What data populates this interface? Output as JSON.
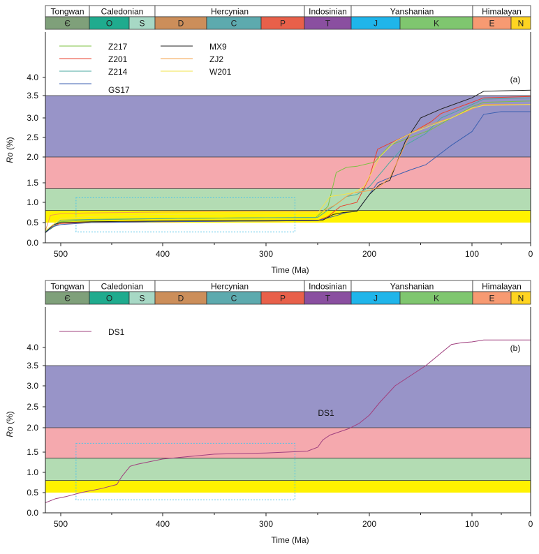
{
  "chart_data": [
    {
      "type": "line",
      "panel_tag": "(a)",
      "xlabel": "Time (Ma)",
      "ylabel_italic": "Ro",
      "ylabel_suffix": " (%)",
      "xlim": [
        530,
        0
      ],
      "ylim": [
        0,
        4.3
      ],
      "x_ticks": [
        500,
        400,
        300,
        200,
        100,
        0
      ],
      "y_ticks": [
        "0.0",
        "0.5",
        "1.0",
        "1.5",
        "2.0",
        "2.5",
        "3.0",
        "3.5",
        "4.0"
      ],
      "legend_placement": "top-left",
      "maturity_zones": [
        {
          "from": 0.5,
          "to": 0.8,
          "color": "#fff200"
        },
        {
          "from": 0.8,
          "to": 1.35,
          "color": "#b3dcb3"
        },
        {
          "from": 1.35,
          "to": 2.0,
          "color": "#f5a9ae"
        },
        {
          "from": 2.0,
          "to": 3.5,
          "color": "#9894c8"
        }
      ],
      "highlight_box": {
        "x_from": 485,
        "x_to": 272,
        "y_from": 0.27,
        "y_to": 1.12,
        "color": "#4fc3e8"
      },
      "series": [
        {
          "name": "Z217",
          "color": "#7cc142",
          "x": [
            530,
            520,
            500,
            480,
            440,
            400,
            300,
            252,
            240,
            232,
            222,
            212,
            195,
            180,
            160,
            140,
            120,
            100,
            80,
            0
          ],
          "y": [
            0.3,
            0.34,
            0.52,
            0.55,
            0.58,
            0.6,
            0.62,
            0.62,
            0.9,
            1.7,
            1.8,
            1.82,
            1.9,
            2.3,
            2.5,
            2.7,
            3.0,
            3.25,
            3.35,
            3.38
          ]
        },
        {
          "name": "Z201",
          "color": "#e8412e",
          "x": [
            530,
            515,
            500,
            470,
            400,
            300,
            250,
            240,
            228,
            212,
            200,
            192,
            180,
            160,
            140,
            130,
            100,
            80,
            0
          ],
          "y": [
            0.25,
            0.42,
            0.48,
            0.5,
            0.52,
            0.54,
            0.55,
            0.65,
            0.9,
            1.0,
            1.6,
            2.2,
            2.35,
            2.6,
            2.9,
            3.1,
            3.35,
            3.45,
            3.48
          ]
        },
        {
          "name": "Z214",
          "color": "#4aa8a0",
          "x": [
            530,
            515,
            500,
            470,
            400,
            300,
            250,
            235,
            222,
            212,
            200,
            180,
            165,
            145,
            130,
            100,
            80,
            0
          ],
          "y": [
            0.27,
            0.4,
            0.56,
            0.58,
            0.6,
            0.62,
            0.63,
            0.9,
            1.15,
            1.2,
            1.4,
            1.9,
            2.3,
            2.6,
            3.0,
            3.3,
            3.42,
            3.45
          ]
        },
        {
          "name": "GS17",
          "color": "#3b5fb0",
          "x": [
            530,
            515,
            500,
            470,
            400,
            300,
            250,
            235,
            222,
            212,
            200,
            192,
            180,
            160,
            145,
            120,
            100,
            80,
            50,
            0
          ],
          "y": [
            0.25,
            0.4,
            0.45,
            0.5,
            0.52,
            0.54,
            0.55,
            0.65,
            0.75,
            0.78,
            1.2,
            1.5,
            1.6,
            1.75,
            1.85,
            2.3,
            2.65,
            3.08,
            3.14,
            3.14
          ]
        },
        {
          "name": "MX9",
          "color": "#222222",
          "x": [
            530,
            515,
            500,
            470,
            400,
            300,
            245,
            235,
            225,
            212,
            200,
            190,
            180,
            165,
            150,
            130,
            100,
            80,
            0
          ],
          "y": [
            0.25,
            0.45,
            0.5,
            0.52,
            0.54,
            0.55,
            0.56,
            0.7,
            0.75,
            0.78,
            1.2,
            1.45,
            1.55,
            2.4,
            3.0,
            3.2,
            3.45,
            3.62,
            3.65
          ]
        },
        {
          "name": "ZJ2",
          "color": "#f5a04a",
          "x": [
            530,
            520,
            510,
            500,
            470,
            400,
            300,
            245,
            232,
            222,
            215,
            200,
            190,
            180,
            160,
            145,
            120,
            100,
            80,
            0
          ],
          "y": [
            0.3,
            0.68,
            0.7,
            0.72,
            0.74,
            0.76,
            0.78,
            0.78,
            0.95,
            1.15,
            1.25,
            1.3,
            1.4,
            1.6,
            2.6,
            2.8,
            3.0,
            3.2,
            3.3,
            3.3
          ]
        },
        {
          "name": "W201",
          "color": "#f2e34a",
          "x": [
            530,
            515,
            500,
            470,
            400,
            300,
            250,
            238,
            225,
            215,
            205,
            190,
            175,
            160,
            140,
            120,
            100,
            80,
            0
          ],
          "y": [
            0.3,
            0.45,
            0.6,
            0.65,
            0.7,
            0.72,
            0.73,
            1.15,
            1.2,
            1.25,
            1.4,
            2.0,
            2.4,
            2.6,
            2.8,
            3.0,
            3.22,
            3.28,
            3.3
          ]
        }
      ]
    },
    {
      "type": "line",
      "panel_tag": "(b)",
      "xlabel": "Time (Ma)",
      "ylabel_italic": "Ro",
      "ylabel_suffix": " (%)",
      "xlim": [
        530,
        0
      ],
      "ylim": [
        0,
        4.3
      ],
      "x_ticks": [
        500,
        400,
        300,
        200,
        100,
        0
      ],
      "y_ticks": [
        "0.0",
        "0.5",
        "1.0",
        "1.5",
        "2.0",
        "2.5",
        "3.0",
        "3.5",
        "4.0"
      ],
      "legend_placement": "top-left",
      "annotation": "DS1",
      "maturity_zones": [
        {
          "from": 0.5,
          "to": 0.8,
          "color": "#fff200"
        },
        {
          "from": 0.8,
          "to": 1.35,
          "color": "#b3dcb3"
        },
        {
          "from": 1.35,
          "to": 2.0,
          "color": "#f5a9ae"
        },
        {
          "from": 2.0,
          "to": 3.5,
          "color": "#9894c8"
        }
      ],
      "highlight_box": {
        "x_from": 485,
        "x_to": 272,
        "y_from": 0.32,
        "y_to": 1.68,
        "color": "#4fc3e8"
      },
      "series": [
        {
          "name": "DS1",
          "color": "#a0407f",
          "x": [
            530,
            510,
            495,
            480,
            460,
            445,
            440,
            432,
            425,
            400,
            350,
            300,
            260,
            250,
            245,
            238,
            220,
            210,
            200,
            190,
            175,
            160,
            145,
            130,
            120,
            110,
            100,
            80,
            0
          ],
          "y": [
            0.25,
            0.35,
            0.4,
            0.5,
            0.6,
            0.7,
            0.9,
            1.15,
            1.2,
            1.33,
            1.45,
            1.48,
            1.52,
            1.6,
            1.75,
            1.85,
            1.98,
            2.1,
            2.3,
            2.6,
            3.0,
            3.25,
            3.5,
            3.85,
            4.08,
            4.13,
            4.15,
            4.2,
            4.2
          ]
        }
      ]
    }
  ],
  "timescale": {
    "eras": [
      "Tongwan",
      "Caledonian",
      "Hercynian",
      "Indosinian",
      "Yanshanian",
      "Himalayan"
    ],
    "periods": [
      {
        "label": "Є",
        "color": "#7fa07a"
      },
      {
        "label": "O",
        "color": "#1fab8e"
      },
      {
        "label": "S",
        "color": "#a7d8c5"
      },
      {
        "label": "D",
        "color": "#cc8e5a"
      },
      {
        "label": "C",
        "color": "#5daaae"
      },
      {
        "label": "P",
        "color": "#e8604a"
      },
      {
        "label": "T",
        "color": "#8a4fa0"
      },
      {
        "label": "J",
        "color": "#1fb5ea"
      },
      {
        "label": "K",
        "color": "#7fc66f"
      },
      {
        "label": "E",
        "color": "#f79a72"
      },
      {
        "label": "N",
        "color": "#ffd421"
      }
    ]
  }
}
